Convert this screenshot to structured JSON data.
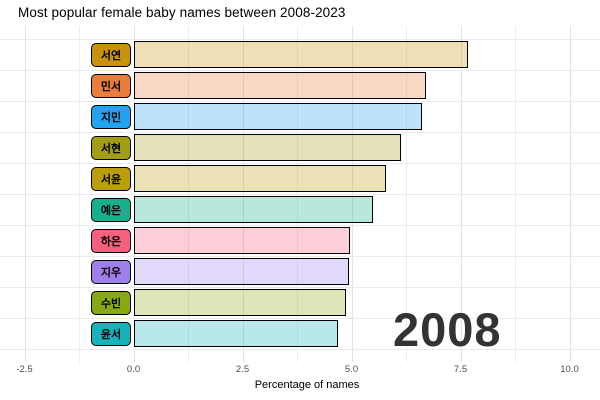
{
  "title": "Most popular female baby names between 2008-2023",
  "year_overlay": "2008",
  "x_axis": {
    "label": "Percentage of names"
  },
  "chart_data": {
    "type": "bar",
    "orientation": "horizontal",
    "title": "Most popular female baby names between 2008-2023",
    "xlabel": "Percentage of names",
    "ylabel": "",
    "year_label": "2008",
    "categories": [
      "서연",
      "민서",
      "지민",
      "서현",
      "서윤",
      "예은",
      "하은",
      "지우",
      "수빈",
      "윤서"
    ],
    "values": [
      7.67,
      6.7,
      6.61,
      6.13,
      5.8,
      5.49,
      4.97,
      4.95,
      4.87,
      4.69
    ],
    "colors": [
      "#c9920c",
      "#e87d3e",
      "#22a3f2",
      "#a39d16",
      "#bb9e0d",
      "#14b18c",
      "#f4607d",
      "#9f7fea",
      "#87a912",
      "#16b3bb"
    ],
    "bar_fill_opacity": 0.3,
    "bar_border_color": "#000000",
    "x_tick_labels": [
      "-2.5",
      "0.0",
      "2.5",
      "5.0",
      "7.5",
      "10.0"
    ],
    "x_tick_values": [
      -2.5,
      0,
      2.5,
      5,
      7.5,
      10
    ],
    "x_minor_grid_values": [
      -1.25,
      1.25,
      3.75,
      6.25,
      8.75
    ],
    "xlim": [
      -3.1,
      10.7
    ],
    "grid": true,
    "legend_position": "none",
    "sorted": "descending"
  }
}
